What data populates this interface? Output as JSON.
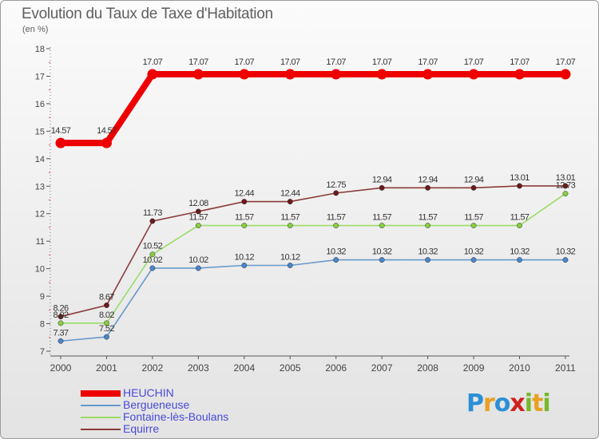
{
  "chart_data": {
    "type": "line",
    "title": "Evolution du Taux de Taxe d'Habitation",
    "subtitle": "(en %)",
    "xlabel": "",
    "ylabel": "",
    "x": [
      "2000",
      "2001",
      "2002",
      "2003",
      "2004",
      "2005",
      "2006",
      "2007",
      "2008",
      "2009",
      "2010",
      "2011"
    ],
    "ylim": [
      7,
      18
    ],
    "yticks": [
      7,
      8,
      9,
      10,
      11,
      12,
      13,
      14,
      15,
      16,
      17,
      18
    ],
    "grid": false,
    "legend_position": "bottom-left",
    "series": [
      {
        "name": "HEUCHIN",
        "color": "#ee0000",
        "emphasis": true,
        "values": [
          14.57,
          14.57,
          17.07,
          17.07,
          17.07,
          17.07,
          17.07,
          17.07,
          17.07,
          17.07,
          17.07,
          17.07
        ],
        "labels": [
          "14.57",
          "14.57",
          "17.07",
          "17.07",
          "17.07",
          "17.07",
          "17.07",
          "17.07",
          "17.07",
          "17.07",
          "17.07",
          "17.07"
        ]
      },
      {
        "name": "Bergueneuse",
        "color": "#6699cc",
        "marker": "#4a86c8",
        "values": [
          7.37,
          7.52,
          10.02,
          10.02,
          10.12,
          10.12,
          10.32,
          10.32,
          10.32,
          10.32,
          10.32,
          10.32
        ],
        "labels": [
          "7.37",
          "7.52",
          "10.02",
          "10.02",
          "10.12",
          "10.12",
          "10.32",
          "10.32",
          "10.32",
          "10.32",
          "10.32",
          "10.32"
        ]
      },
      {
        "name": "Fontaine-lès-Boulans",
        "color": "#99dd66",
        "marker": "#88cc44",
        "values": [
          8.02,
          8.02,
          10.52,
          11.57,
          11.57,
          11.57,
          11.57,
          11.57,
          11.57,
          11.57,
          11.57,
          12.73
        ],
        "labels": [
          "8.02",
          "8.02",
          "10.52",
          "11.57",
          "11.57",
          "11.57",
          "11.57",
          "11.57",
          "11.57",
          "11.57",
          "11.57",
          "12.73"
        ]
      },
      {
        "name": "Equirre",
        "color": "#8b3a3a",
        "marker": "#6b1a1a",
        "values": [
          8.26,
          8.67,
          11.73,
          12.08,
          12.44,
          12.44,
          12.75,
          12.94,
          12.94,
          12.94,
          13.01,
          13.01
        ],
        "labels": [
          "8.26",
          "8.67",
          "11.73",
          "12.08",
          "12.44",
          "12.44",
          "12.75",
          "12.94",
          "12.94",
          "12.94",
          "13.01",
          "13.01"
        ]
      }
    ]
  },
  "logo": {
    "letters": [
      "P",
      "r",
      "o",
      "x",
      "i",
      "t",
      "i"
    ],
    "colors": [
      "#2b8fd6",
      "#e8a020",
      "#2b8fd6",
      "#d02020",
      "#77b82a",
      "#e8a020",
      "#77b82a"
    ]
  }
}
